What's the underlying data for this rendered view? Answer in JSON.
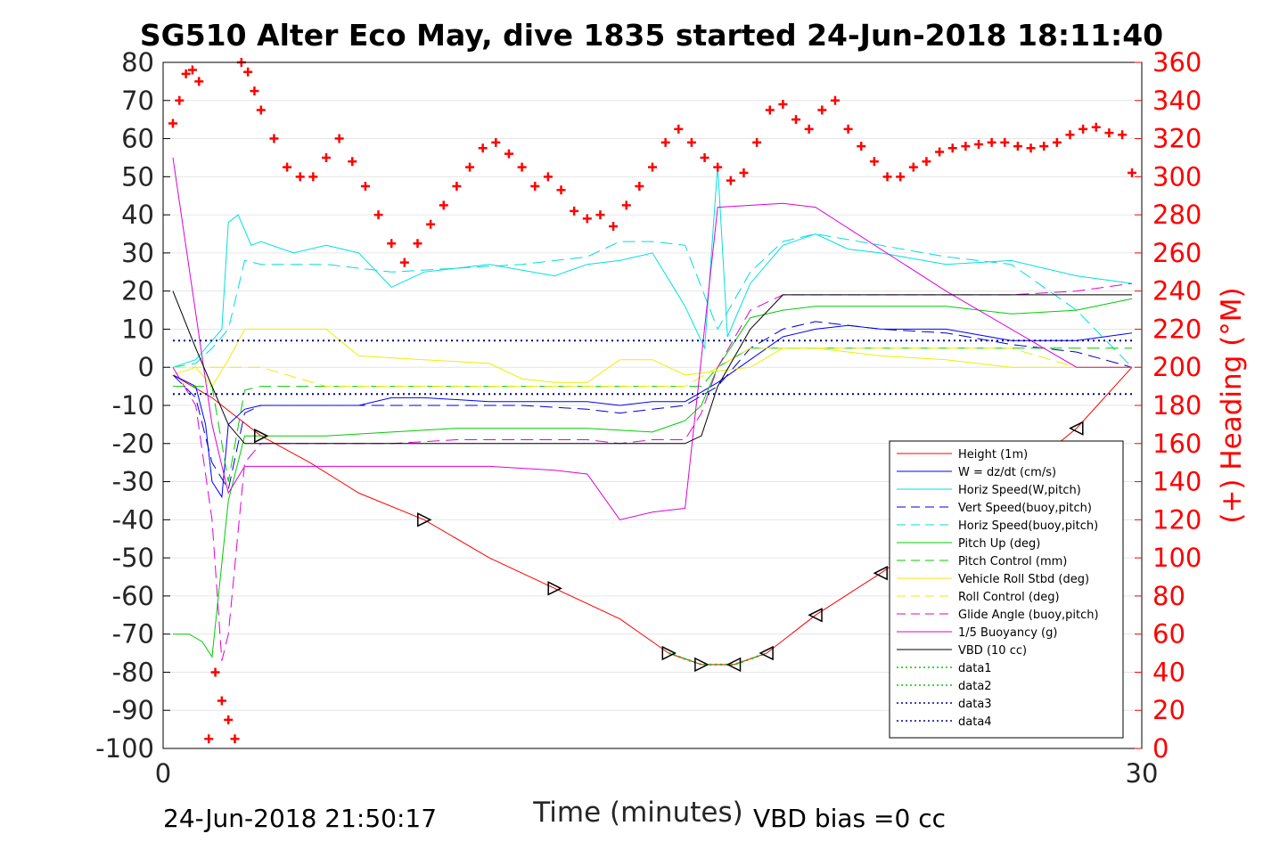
{
  "chart_data": {
    "type": "line",
    "title": "SG510 Alter Eco May, dive 1835 started 24-Jun-2018 18:11:40",
    "xlabel": "Time (minutes)",
    "ylabel_right": "(+) Heading (°M)",
    "xlim": [
      0,
      30
    ],
    "ylim_left": [
      -100,
      80
    ],
    "ylim_right": [
      0,
      360
    ],
    "x_ticks": [
      "0",
      "30"
    ],
    "y_left_ticks": [
      "80",
      "70",
      "60",
      "50",
      "40",
      "30",
      "20",
      "10",
      "0",
      "-10",
      "-20",
      "-30",
      "-40",
      "-50",
      "-60",
      "-70",
      "-80",
      "-90",
      "-100"
    ],
    "y_right_ticks": [
      "360",
      "340",
      "320",
      "300",
      "280",
      "260",
      "240",
      "220",
      "200",
      "180",
      "160",
      "140",
      "120",
      "100",
      "80",
      "60",
      "40",
      "20",
      "0"
    ],
    "grid": "horizontal",
    "legend_position": "bottom-right",
    "footer_left": "24-Jun-2018 21:50:17",
    "footer_right": "VBD bias =0 cc",
    "series": [
      {
        "name": "Height (1m)",
        "color": "#ff0000",
        "style": "solid",
        "axis": "left",
        "x": [
          0.3,
          1.5,
          3,
          4.5,
          6,
          8,
          10,
          12,
          14,
          15.5,
          16.5,
          17.5,
          18.5,
          20,
          22,
          24,
          26,
          28,
          29.7
        ],
        "y": [
          -2,
          -8,
          -18,
          -25,
          -33,
          -40,
          -50,
          -58,
          -66,
          -75,
          -78,
          -78,
          -75,
          -65,
          -54,
          -42,
          -30,
          -16,
          0
        ]
      },
      {
        "name": "W = dz/dt (cm/s)",
        "color": "#0000ff",
        "style": "solid",
        "axis": "left",
        "x": [
          0.3,
          1,
          1.3,
          1.5,
          1.8,
          2,
          2.5,
          3,
          4,
          5,
          6,
          7,
          8,
          10,
          12,
          13,
          14,
          15,
          16,
          17,
          18,
          19,
          20,
          21,
          22,
          24,
          26,
          28,
          29.7
        ],
        "y": [
          -2,
          -5,
          -15,
          -30,
          -34,
          -15,
          -11,
          -10,
          -10,
          -10,
          -10,
          -8,
          -8,
          -9,
          -9,
          -9,
          -10,
          -9,
          -9,
          -4,
          2,
          8,
          10,
          11,
          10,
          10,
          7,
          7,
          9
        ]
      },
      {
        "name": "Horiz Speed(W,pitch)",
        "color": "#00e0e0",
        "style": "solid",
        "axis": "left",
        "x": [
          0.3,
          1,
          1.5,
          1.8,
          2,
          2.3,
          2.7,
          3,
          4,
          5,
          6,
          7,
          8,
          9,
          10,
          12,
          13,
          14,
          15,
          16,
          16.6,
          17,
          17.3,
          18,
          19,
          20,
          21,
          22,
          24,
          26,
          28,
          29.7
        ],
        "y": [
          0,
          2,
          7,
          10,
          38,
          40,
          32,
          33,
          30,
          32,
          30,
          21,
          25,
          26,
          27,
          24,
          27,
          28,
          30,
          16,
          5,
          53,
          8,
          22,
          32,
          35,
          31,
          30,
          27,
          28,
          24,
          22
        ]
      },
      {
        "name": "Vert Speed(buoy,pitch)",
        "color": "#0000cc",
        "style": "dashed",
        "axis": "left",
        "x": [
          0.3,
          1,
          1.5,
          2,
          2.5,
          3,
          5,
          7,
          9,
          11,
          13,
          14,
          15,
          16,
          17,
          18,
          19,
          20,
          22,
          24,
          26,
          28,
          29.7
        ],
        "y": [
          -2,
          -8,
          -25,
          -32,
          -12,
          -10,
          -10,
          -10,
          -10,
          -10,
          -11,
          -12,
          -11,
          -10,
          -5,
          5,
          10,
          12,
          10,
          9,
          6,
          4,
          0
        ]
      },
      {
        "name": "Horiz Speed(buoy,pitch)",
        "color": "#00dddd",
        "style": "dashed",
        "axis": "left",
        "x": [
          0.3,
          1,
          1.5,
          2,
          2.5,
          3,
          5,
          7,
          9,
          11,
          13,
          14,
          15,
          16,
          17,
          18,
          19,
          20,
          22,
          24,
          26,
          28,
          29.7
        ],
        "y": [
          0,
          1,
          5,
          10,
          28,
          27,
          27,
          25,
          26,
          27,
          29,
          33,
          33,
          32,
          10,
          25,
          33,
          35,
          32,
          29,
          27,
          15,
          0
        ]
      },
      {
        "name": "Pitch Up (deg)",
        "color": "#00cc00",
        "style": "solid",
        "axis": "left",
        "x": [
          0.3,
          0.8,
          1.2,
          1.5,
          2,
          2.5,
          3,
          5,
          7,
          9,
          11,
          13,
          15,
          16,
          16.5,
          17,
          18,
          19,
          20,
          22,
          24,
          26,
          28,
          29.7
        ],
        "y": [
          -70,
          -70,
          -72,
          -76,
          -35,
          -18,
          -18,
          -18,
          -17,
          -16,
          -16,
          -16,
          -17,
          -14,
          -10,
          0,
          13,
          15,
          16,
          16,
          16,
          14,
          15,
          18
        ]
      },
      {
        "name": "Pitch Control (mm)",
        "color": "#00cc00",
        "style": "dashed",
        "axis": "left",
        "x": [
          0.3,
          1.5,
          2,
          2.5,
          3,
          8,
          13,
          16,
          16.5,
          17,
          18,
          29.7
        ],
        "y": [
          -5,
          -5,
          -30,
          -6,
          -5,
          -5,
          -5,
          -5,
          -5,
          0,
          5,
          5
        ]
      },
      {
        "name": "Vehicle Roll Stbd (deg)",
        "color": "#eeee00",
        "style": "solid",
        "axis": "left",
        "x": [
          0.3,
          1,
          1.5,
          2,
          2.5,
          3,
          4,
          5,
          6,
          8,
          10,
          11,
          12,
          13,
          14,
          15,
          16,
          17,
          18,
          19,
          20,
          22,
          24,
          26,
          28,
          29.7
        ],
        "y": [
          -2,
          0,
          -5,
          2,
          10,
          10,
          10,
          10,
          3,
          2,
          1,
          -3,
          -4,
          -4,
          2,
          2,
          -2,
          -1,
          0,
          5,
          5,
          3,
          2,
          0,
          0,
          0
        ]
      },
      {
        "name": "Roll Control (deg)",
        "color": "#eeee00",
        "style": "dashed",
        "axis": "left",
        "x": [
          0.3,
          3,
          5,
          8,
          10,
          13,
          16,
          17,
          18,
          20,
          22,
          24,
          26,
          28,
          29.7
        ],
        "y": [
          0,
          0,
          -5,
          -5,
          -5,
          -5,
          -5,
          0,
          5,
          5,
          5,
          5,
          5,
          0,
          0
        ]
      },
      {
        "name": "Glide Angle (buoy,pitch)",
        "color": "#dd00dd",
        "style": "dashed",
        "axis": "left",
        "x": [
          0.3,
          1,
          1.5,
          1.8,
          2,
          2.5,
          3,
          5,
          7,
          9,
          11,
          13,
          14,
          15,
          16,
          16.5,
          17,
          18,
          19,
          20,
          22,
          24,
          26,
          28,
          29.7
        ],
        "y": [
          0,
          -10,
          -40,
          -77,
          -70,
          -25,
          -20,
          -20,
          -20,
          -19,
          -19,
          -19,
          -20,
          -19,
          -19,
          -12,
          0,
          15,
          19,
          19,
          19,
          19,
          19,
          20,
          22
        ]
      },
      {
        "name": "1/5 Buoyancy (g)",
        "color": "#dd00dd",
        "style": "solid",
        "axis": "left",
        "x": [
          0.3,
          1.5,
          2,
          2.5,
          3,
          5,
          8,
          10,
          12,
          13,
          14,
          15,
          16,
          17,
          19,
          20,
          24,
          28,
          29.7
        ],
        "y": [
          55,
          -15,
          -33,
          -26,
          -26,
          -26,
          -26,
          -26,
          -27,
          -28,
          -40,
          -38,
          -37,
          42,
          43,
          42,
          20,
          0,
          0
        ]
      },
      {
        "name": "VBD (10 cc)",
        "color": "#000000",
        "style": "solid",
        "axis": "left",
        "x": [
          0.3,
          1,
          1.5,
          2,
          2.5,
          3,
          8,
          12,
          14,
          16,
          16.5,
          17,
          18,
          19,
          22,
          26,
          29.7
        ],
        "y": [
          20,
          5,
          -5,
          -15,
          -20,
          -20,
          -20,
          -20,
          -20,
          -20,
          -18,
          -5,
          10,
          19,
          19,
          19,
          19
        ]
      },
      {
        "name": "data1",
        "color": "#00cc00",
        "style": "dotted",
        "axis": "left",
        "x": [
          15.5,
          16.5,
          17.5,
          18.5
        ],
        "y": [
          -75,
          -78,
          -78,
          -75
        ]
      },
      {
        "name": "data2",
        "color": "#00cc00",
        "style": "dotted",
        "axis": "left",
        "x": [
          15.5,
          16.5,
          17.5,
          18.5
        ],
        "y": [
          -75,
          -78,
          -78,
          -75
        ]
      },
      {
        "name": "data3",
        "color": "#00008b",
        "style": "dotted",
        "axis": "left",
        "x": [
          0.3,
          29.7
        ],
        "y": [
          7,
          7
        ]
      },
      {
        "name": "data4",
        "color": "#00008b",
        "style": "dotted",
        "axis": "left",
        "x": [
          0.3,
          29.7
        ],
        "y": [
          -7,
          -7
        ]
      },
      {
        "name": "Heading",
        "color": "#ff0000",
        "style": "plus",
        "axis": "right",
        "x": [
          0.3,
          0.5,
          0.7,
          0.9,
          1.1,
          1.4,
          1.6,
          1.8,
          2.0,
          2.2,
          2.4,
          2.6,
          2.8,
          3.0,
          3.4,
          3.8,
          4.2,
          4.6,
          5.0,
          5.4,
          5.8,
          6.2,
          6.6,
          7.0,
          7.4,
          7.8,
          8.2,
          8.6,
          9.0,
          9.4,
          9.8,
          10.2,
          10.6,
          11.0,
          11.4,
          11.8,
          12.2,
          12.6,
          13.0,
          13.4,
          13.8,
          14.2,
          14.6,
          15.0,
          15.4,
          15.8,
          16.2,
          16.6,
          17.0,
          17.4,
          17.8,
          18.2,
          18.6,
          19.0,
          19.4,
          19.8,
          20.2,
          20.6,
          21.0,
          21.4,
          21.8,
          22.2,
          22.6,
          23.0,
          23.4,
          23.8,
          24.2,
          24.6,
          25.0,
          25.4,
          25.8,
          26.2,
          26.6,
          27.0,
          27.4,
          27.8,
          28.2,
          28.6,
          29.0,
          29.4,
          29.7
        ],
        "y": [
          328,
          340,
          354,
          356,
          350,
          5,
          40,
          25,
          15,
          5,
          360,
          355,
          345,
          335,
          320,
          305,
          300,
          300,
          310,
          320,
          308,
          295,
          280,
          265,
          255,
          265,
          275,
          285,
          295,
          305,
          315,
          318,
          312,
          305,
          295,
          300,
          293,
          282,
          278,
          280,
          274,
          285,
          295,
          305,
          318,
          325,
          318,
          310,
          305,
          298,
          302,
          318,
          335,
          338,
          330,
          325,
          335,
          340,
          325,
          316,
          308,
          300,
          300,
          305,
          308,
          313,
          315,
          316,
          317,
          318,
          318,
          316,
          315,
          316,
          318,
          322,
          325,
          326,
          323,
          322,
          302
        ]
      }
    ]
  }
}
